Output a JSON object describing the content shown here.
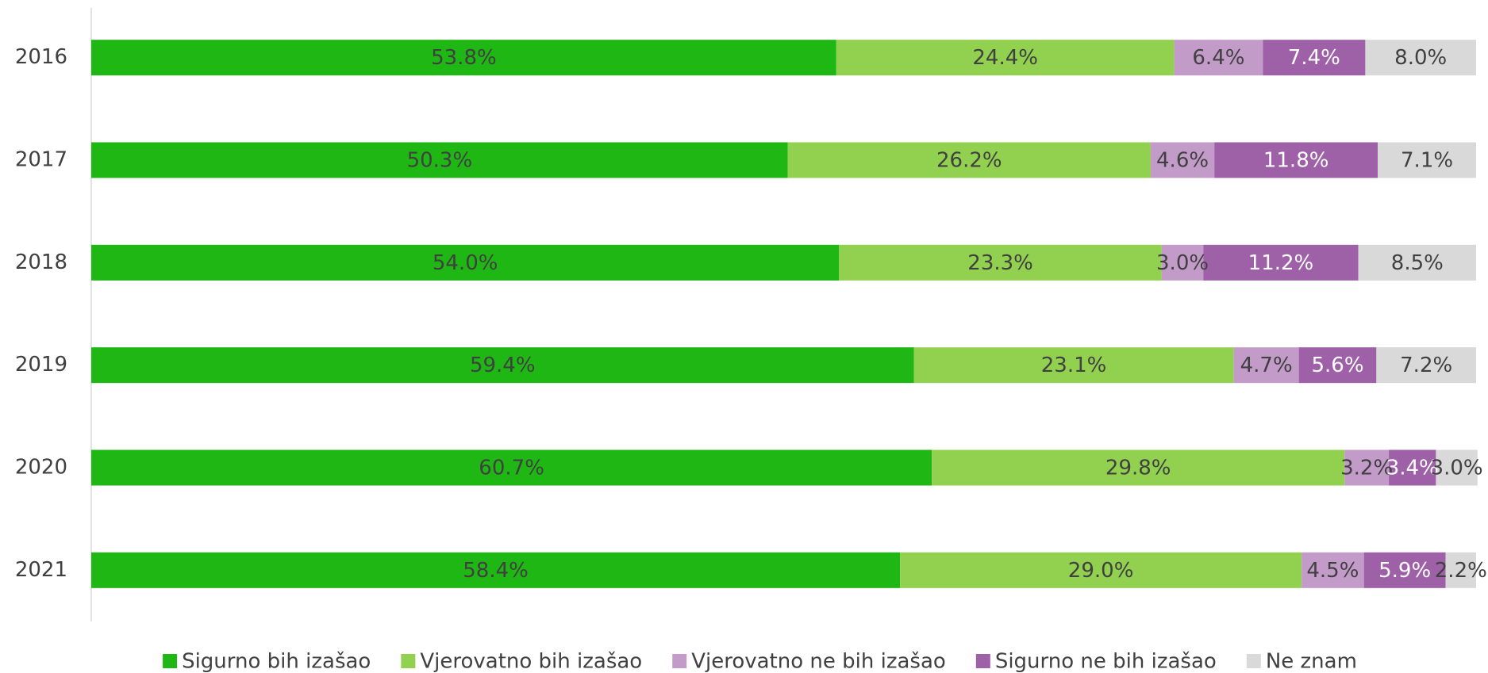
{
  "chart_data": {
    "type": "stacked_barh",
    "categories": [
      "2016",
      "2017",
      "2018",
      "2019",
      "2020",
      "2021"
    ],
    "xlim": [
      0,
      100
    ],
    "legend": "bottom",
    "series": [
      {
        "name": "Sigurno bih izašao",
        "color": "#1fb714",
        "label_color": "#404040",
        "values": [
          53.8,
          50.3,
          54.0,
          59.4,
          60.7,
          58.4
        ],
        "value_labels": [
          "53.8%",
          "50.3%",
          "54.0%",
          "59.4%",
          "60.7%",
          "58.4%"
        ]
      },
      {
        "name": "Vjerovatno bih izašao",
        "color": "#92d050",
        "label_color": "#404040",
        "values": [
          24.4,
          26.2,
          23.3,
          23.1,
          29.8,
          29.0
        ],
        "value_labels": [
          "24.4%",
          "26.2%",
          "23.3%",
          "23.1%",
          "29.8%",
          "29.0%"
        ]
      },
      {
        "name": "Vjerovatno ne bih izašao",
        "color": "#c39bc9",
        "label_color": "#404040",
        "values": [
          6.4,
          4.6,
          3.0,
          4.7,
          3.2,
          4.5
        ],
        "value_labels": [
          "6.4%",
          "4.6%",
          "3.0%",
          "4.7%",
          "3.2%",
          "4.5%"
        ]
      },
      {
        "name": "Sigurno ne bih izašao",
        "color": "#9e61a8",
        "label_color": "#ffffff",
        "values": [
          7.4,
          11.8,
          11.2,
          5.6,
          3.4,
          5.9
        ],
        "value_labels": [
          "7.4%",
          "11.8%",
          "11.2%",
          "5.6%",
          "3.4%",
          "5.9%"
        ]
      },
      {
        "name": "Ne znam",
        "color": "#d9d9d9",
        "label_color": "#404040",
        "values": [
          8.0,
          7.1,
          8.5,
          7.2,
          3.0,
          2.2
        ],
        "value_labels": [
          "8.0%",
          "7.1%",
          "8.5%",
          "7.2%",
          "3.0%",
          "2.2%"
        ]
      }
    ]
  }
}
